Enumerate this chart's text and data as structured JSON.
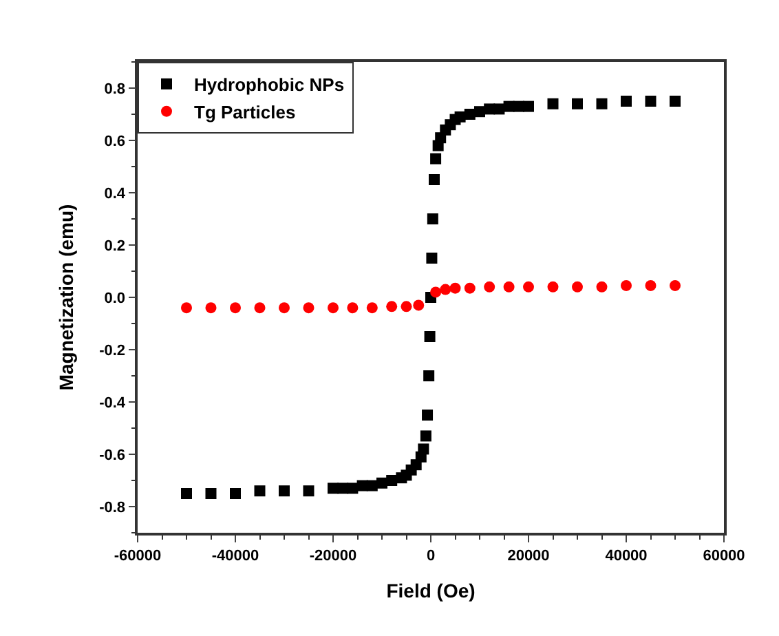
{
  "chart_data": {
    "type": "scatter",
    "xlabel": "Field (Oe)",
    "ylabel": "Magnetization (emu)",
    "xlim": [
      -60000,
      60000
    ],
    "xticks": [
      -60000,
      -40000,
      -20000,
      0,
      20000,
      40000,
      60000
    ],
    "ylim": [
      -0.9,
      0.9
    ],
    "yticks": [
      {
        "value": -0.8,
        "label": "-0.8"
      },
      {
        "value": -0.6,
        "label": "-0.6"
      },
      {
        "value": -0.4,
        "label": "-0.4"
      },
      {
        "value": -0.2,
        "label": "-0.2"
      },
      {
        "value": 0,
        "label": "0.0"
      },
      {
        "value": 0.2,
        "label": "0.2"
      },
      {
        "value": 0.4,
        "label": "0.4"
      },
      {
        "value": 0.6,
        "label": "0.6"
      },
      {
        "value": 0.8,
        "label": "0.8"
      }
    ],
    "legend": "top left",
    "series": [
      {
        "name": "Hydrophobic NPs",
        "color": "#000000",
        "marker": "square",
        "x": [
          -50000,
          -45000,
          -40000,
          -35000,
          -30000,
          -25000,
          -20000,
          -18000,
          -16000,
          -14000,
          -12000,
          -10000,
          -8000,
          -6000,
          -5000,
          -4000,
          -3000,
          -2000,
          -1500,
          -1000,
          -700,
          -400,
          -200,
          0,
          200,
          400,
          700,
          1000,
          1500,
          2000,
          3000,
          4000,
          5000,
          6000,
          8000,
          10000,
          12000,
          14000,
          16000,
          18000,
          20000,
          25000,
          30000,
          35000,
          40000,
          45000,
          50000
        ],
        "values": [
          -0.75,
          -0.75,
          -0.75,
          -0.74,
          -0.74,
          -0.74,
          -0.73,
          -0.73,
          -0.73,
          -0.72,
          -0.72,
          -0.71,
          -0.7,
          -0.69,
          -0.68,
          -0.66,
          -0.64,
          -0.61,
          -0.58,
          -0.53,
          -0.45,
          -0.3,
          -0.15,
          0.0,
          0.15,
          0.3,
          0.45,
          0.53,
          0.58,
          0.61,
          0.64,
          0.66,
          0.68,
          0.69,
          0.7,
          0.71,
          0.72,
          0.72,
          0.73,
          0.73,
          0.73,
          0.74,
          0.74,
          0.74,
          0.75,
          0.75,
          0.75
        ]
      },
      {
        "name": "Tg Particles",
        "color": "#ff0000",
        "marker": "circle",
        "x": [
          -50000,
          -45000,
          -40000,
          -35000,
          -30000,
          -25000,
          -20000,
          -16000,
          -12000,
          -8000,
          -5000,
          -2500,
          1000,
          3000,
          5000,
          8000,
          12000,
          16000,
          20000,
          25000,
          30000,
          35000,
          40000,
          45000,
          50000
        ],
        "values": [
          -0.04,
          -0.04,
          -0.04,
          -0.04,
          -0.04,
          -0.04,
          -0.04,
          -0.04,
          -0.04,
          -0.035,
          -0.035,
          -0.03,
          0.02,
          0.03,
          0.035,
          0.035,
          0.04,
          0.04,
          0.04,
          0.04,
          0.04,
          0.04,
          0.045,
          0.045,
          0.045
        ]
      }
    ]
  }
}
